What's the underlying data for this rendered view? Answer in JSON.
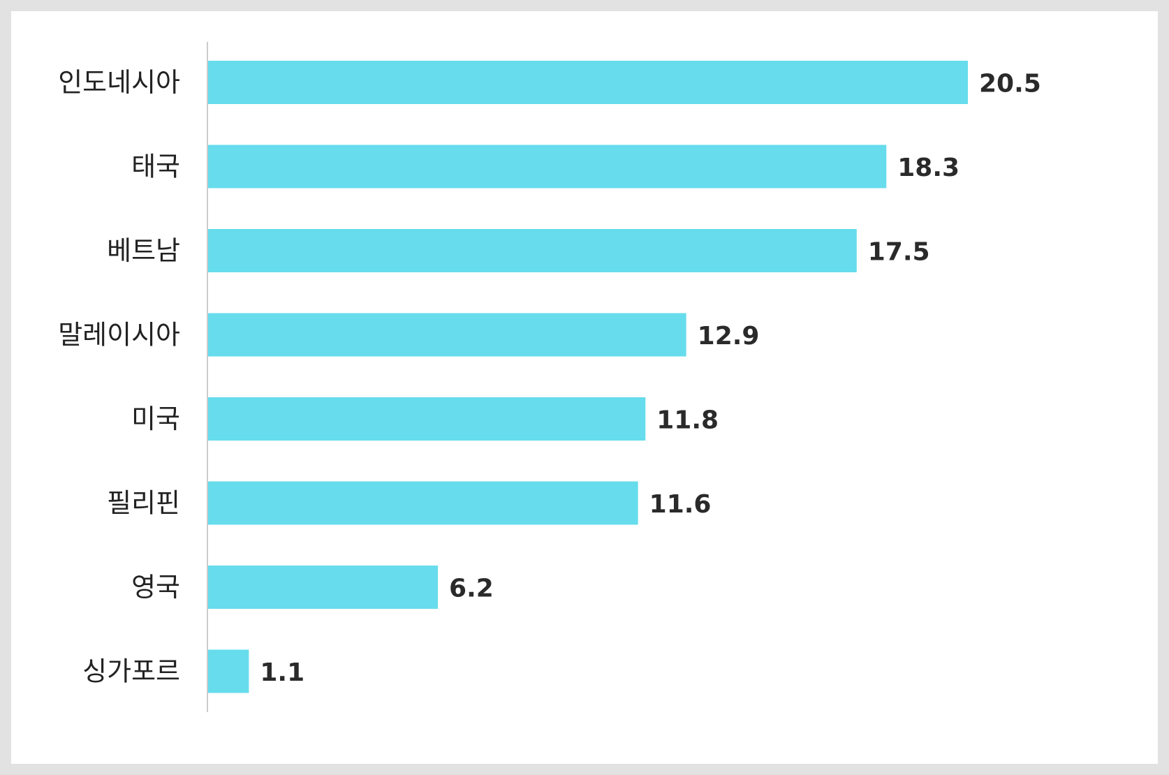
{
  "chart_data": {
    "type": "bar",
    "orientation": "horizontal",
    "categories": [
      "인도네시아",
      "태국",
      "베트남",
      "말레이시아",
      "미국",
      "필리핀",
      "영국",
      "싱가포르"
    ],
    "values": [
      20.5,
      18.3,
      17.5,
      12.9,
      11.8,
      11.6,
      6.2,
      1.1
    ],
    "value_labels": [
      "20.5",
      "18.3",
      "17.5",
      "12.9",
      "11.8",
      "11.6",
      "6.2",
      "1.1"
    ],
    "title": "",
    "xlabel": "",
    "ylabel": "",
    "xlim": [
      0,
      20.5
    ],
    "grid": false,
    "legend": "none",
    "bar_color": "#66dcec",
    "axis_color": "#cccccc"
  }
}
